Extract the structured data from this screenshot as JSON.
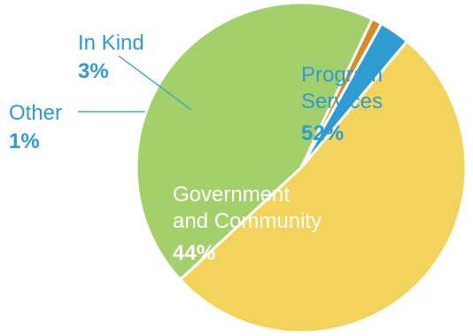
{
  "chart_data": {
    "type": "pie",
    "title": "",
    "start_angle_deg": -50,
    "slices": [
      {
        "name": "Program Services",
        "label_lines": [
          "Program",
          "Services"
        ],
        "value": 52,
        "percent_label": "52%",
        "color": "#f3d35b",
        "label_color": "#2e9bd1",
        "percent_color": "#2e9bd1"
      },
      {
        "name": "Government and Community",
        "label_lines": [
          "Government",
          "and Community"
        ],
        "value": 44,
        "percent_label": "44%",
        "color": "#a4d06c",
        "label_color": "#ffffff",
        "percent_color": "#ffffff"
      },
      {
        "name": "Other",
        "label_lines": [
          "Other"
        ],
        "value": 1,
        "percent_label": "1%",
        "color": "#d9892a",
        "label_color": "#2e9bd1",
        "percent_color": "#2e9bd1"
      },
      {
        "name": "In Kind",
        "label_lines": [
          "In Kind"
        ],
        "value": 3,
        "percent_label": "3%",
        "color": "#2e9bd1",
        "label_color": "#2e9bd1",
        "percent_color": "#2e9bd1"
      }
    ],
    "legend": "none",
    "labels_on_chart": true
  }
}
